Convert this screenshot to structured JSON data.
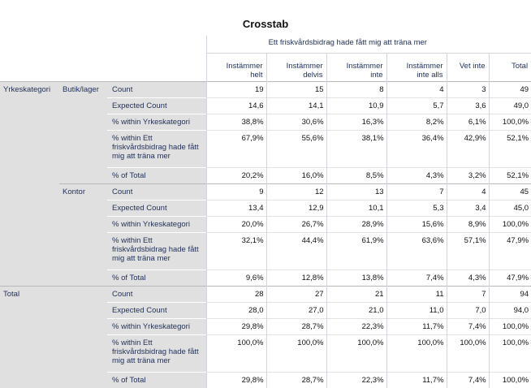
{
  "title": "Crosstab",
  "column_variable": "Ett friskvårdsbidrag hade fått mig att träna mer",
  "columns": [
    "Instämmer helt",
    "Instämmer delvis",
    "Instämmer inte",
    "Instämmer inte alls",
    "Vet inte",
    "Total"
  ],
  "column_lines": [
    [
      "Instämmer",
      "helt"
    ],
    [
      "Instämmer",
      "delvis"
    ],
    [
      "Instämmer",
      "inte"
    ],
    [
      "Instämmer",
      "inte alls"
    ],
    [
      "Vet inte",
      ""
    ],
    [
      "Total",
      ""
    ]
  ],
  "row_variable": "Yrkeskategori",
  "stat_labels": {
    "count": "Count",
    "expected": "Expected Count",
    "within_row": "% within Yrkeskategori",
    "within_col": "% within Ett friskvårdsbidrag hade fått mig att träna mer",
    "of_total": "% of Total"
  },
  "groups": [
    {
      "row_var_label": "Yrkeskategori",
      "category": "Butik/lager",
      "rows": [
        {
          "stat": "Count",
          "values": [
            "19",
            "15",
            "8",
            "4",
            "3",
            "49"
          ]
        },
        {
          "stat": "Expected Count",
          "values": [
            "14,6",
            "14,1",
            "10,9",
            "5,7",
            "3,6",
            "49,0"
          ]
        },
        {
          "stat": "% within Yrkeskategori",
          "values": [
            "38,8%",
            "30,6%",
            "16,3%",
            "8,2%",
            "6,1%",
            "100,0%"
          ]
        },
        {
          "stat": "% within Ett friskvårdsbidrag hade fått mig att träna mer",
          "values": [
            "67,9%",
            "55,6%",
            "38,1%",
            "36,4%",
            "42,9%",
            "52,1%"
          ]
        },
        {
          "stat": "% of Total",
          "values": [
            "20,2%",
            "16,0%",
            "8,5%",
            "4,3%",
            "3,2%",
            "52,1%"
          ]
        }
      ]
    },
    {
      "row_var_label": "",
      "category": "Kontor",
      "rows": [
        {
          "stat": "Count",
          "values": [
            "9",
            "12",
            "13",
            "7",
            "4",
            "45"
          ]
        },
        {
          "stat": "Expected Count",
          "values": [
            "13,4",
            "12,9",
            "10,1",
            "5,3",
            "3,4",
            "45,0"
          ]
        },
        {
          "stat": "% within Yrkeskategori",
          "values": [
            "20,0%",
            "26,7%",
            "28,9%",
            "15,6%",
            "8,9%",
            "100,0%"
          ]
        },
        {
          "stat": "% within Ett friskvårdsbidrag hade fått mig att träna mer",
          "values": [
            "32,1%",
            "44,4%",
            "61,9%",
            "63,6%",
            "57,1%",
            "47,9%"
          ]
        },
        {
          "stat": "% of Total",
          "values": [
            "9,6%",
            "12,8%",
            "13,8%",
            "7,4%",
            "4,3%",
            "47,9%"
          ]
        }
      ]
    },
    {
      "row_var_label": "Total",
      "category": "",
      "rows": [
        {
          "stat": "Count",
          "values": [
            "28",
            "27",
            "21",
            "11",
            "7",
            "94"
          ]
        },
        {
          "stat": "Expected Count",
          "values": [
            "28,0",
            "27,0",
            "21,0",
            "11,0",
            "7,0",
            "94,0"
          ]
        },
        {
          "stat": "% within Yrkeskategori",
          "values": [
            "29,8%",
            "28,7%",
            "22,3%",
            "11,7%",
            "7,4%",
            "100,0%"
          ]
        },
        {
          "stat": "% within Ett friskvårdsbidrag hade fått mig att träna mer",
          "values": [
            "100,0%",
            "100,0%",
            "100,0%",
            "100,0%",
            "100,0%",
            "100,0%"
          ]
        },
        {
          "stat": "% of Total",
          "values": [
            "29,8%",
            "28,7%",
            "22,3%",
            "11,7%",
            "7,4%",
            "100,0%"
          ]
        }
      ]
    }
  ]
}
